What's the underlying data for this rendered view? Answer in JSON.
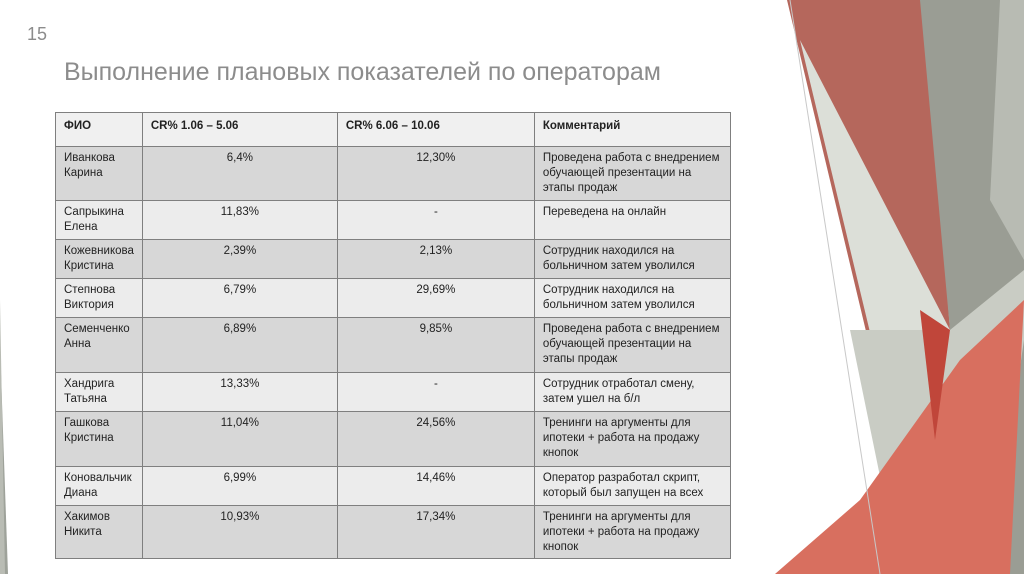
{
  "slide_number": "15",
  "title": "Выполнение плановых показателей по операторам",
  "table": {
    "header": [
      "ФИО",
      "CR% 1.06 – 5.06",
      "CR% 6.06 – 10.06",
      "Комментарий"
    ],
    "rows": [
      [
        "Иванкова Карина",
        "6,4%",
        "12,30%",
        "Проведена работа с внедрением обучающей презентации на этапы продаж"
      ],
      [
        "Сапрыкина Елена",
        "11,83%",
        "-",
        "Переведена на онлайн"
      ],
      [
        "Кожевникова Кристина",
        "2,39%",
        "2,13%",
        "Сотрудник находился на больничном затем уволился"
      ],
      [
        "Степнова Виктория",
        "6,79%",
        "29,69%",
        "Сотрудник находился на больничном затем уволился"
      ],
      [
        "Семенченко Анна",
        "6,89%",
        "9,85%",
        "Проведена работа с внедрением обучающей презентации на этапы продаж"
      ],
      [
        "Хандрига Татьяна",
        "13,33%",
        "-",
        "Сотрудник отработал смену, затем ушел на б/л"
      ],
      [
        "Гашкова Кристина",
        "11,04%",
        "24,56%",
        "Тренинги на аргументы для ипотеки + работа на продажу кнопок"
      ],
      [
        "Коновальчик Диана",
        "6,99%",
        "14,46%",
        "Оператор разработал скрипт, который был запущен на всех"
      ],
      [
        "Хакимов Никита",
        "10,93%",
        "17,34%",
        "Тренинги на аргументы для ипотеки + работа на продажу кнопок"
      ]
    ]
  }
}
